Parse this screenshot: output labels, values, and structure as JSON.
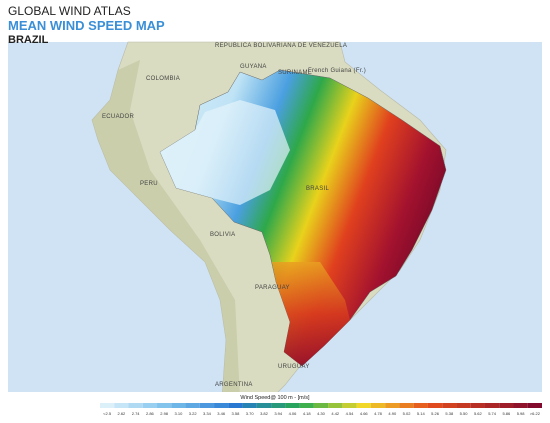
{
  "header": {
    "title": "GLOBAL WIND ATLAS",
    "subtitle": "MEAN WIND SPEED MAP",
    "country": "BRAZIL"
  },
  "map_labels": {
    "venezuela": "REPUBLICA BOLIVARIANA DE VENEZUELA",
    "guyana": "GUYANA",
    "suriname": "SURINAME",
    "french_guiana": "French Guiana (Fr.)",
    "colombia": "COLOMBIA",
    "ecuador": "ECUADOR",
    "peru": "PERU",
    "brazil": "BRASIL",
    "bolivia": "BOLIVIA",
    "paraguay": "PARAGUAY",
    "uruguay": "URUGUAY",
    "argentina": "ARGENTINA"
  },
  "legend": {
    "title": "Wind Speed@ 100 m - [m/s]",
    "labels": [
      "<2.5",
      "2.62",
      "2.74",
      "2.86",
      "2.98",
      "3.10",
      "3.22",
      "3.34",
      "3.46",
      "3.58",
      "3.70",
      "3.82",
      "3.94",
      "4.06",
      "4.18",
      "4.30",
      "4.42",
      "4.54",
      "4.66",
      "4.78",
      "4.90",
      "5.02",
      "5.14",
      "5.26",
      "5.38",
      "5.50",
      "5.62",
      "5.74",
      "5.86",
      "5.98",
      ">6.22"
    ]
  }
}
